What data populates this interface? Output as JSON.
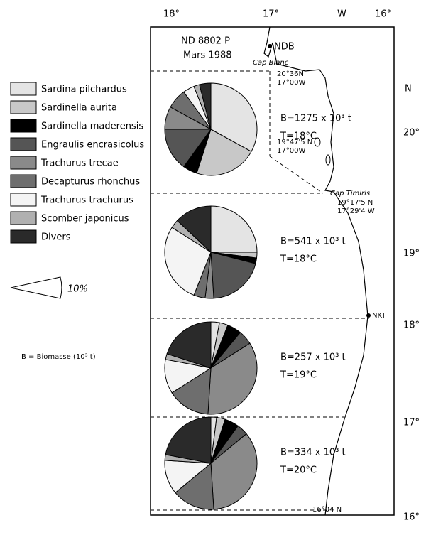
{
  "legend": {
    "categories": [
      "Sardina pilchardus",
      "Sardinella aurita",
      "Sardinella maderensis",
      "Engraulis encrasicolus",
      "Trachurus trecae",
      "Decapturus rhonchus",
      "Trachurus trachurus",
      "Scomber japonicus",
      "Divers"
    ],
    "colors": [
      "#e4e4e4",
      "#c8c8c8",
      "#000000",
      "#555555",
      "#8a8a8a",
      "#6e6e6e",
      "#f4f4f4",
      "#b0b0b0",
      "#2a2a2a"
    ]
  },
  "scale_label": "10%",
  "biomass_note": "B = Biomasse (10³ t)",
  "map": {
    "campaign": "ND 8802 P",
    "date": "Mars 1988",
    "lon_labels": [
      "18°",
      "17°",
      "W",
      "16°"
    ],
    "lat_labels": [
      "N",
      "20°",
      "19°",
      "18°",
      "17°",
      "16°"
    ],
    "places": [
      "NDB",
      "Cap Blanc",
      "20°36N",
      "17°00W",
      "19°47'5 N",
      "17°00W",
      "Cap Timiris",
      "19°17'5 N",
      "17°29'4 W",
      "NKT",
      "16°04 N"
    ]
  },
  "chart_data": [
    {
      "type": "pie",
      "values": [
        33,
        22,
        5,
        15,
        8,
        7,
        4,
        2,
        4
      ],
      "biomass": "B=1275 x 10³ t",
      "temperature": "T=18°C"
    },
    {
      "type": "pie",
      "values": [
        25,
        2,
        2,
        20,
        3,
        4,
        28,
        3,
        13
      ],
      "biomass": "B=541 x 10³ t",
      "temperature": "T=18°C"
    },
    {
      "type": "pie",
      "values": [
        3,
        3,
        5,
        5,
        35,
        15,
        12,
        2,
        20
      ],
      "biomass": "B=257 x 10³ t",
      "temperature": "T=19°C"
    },
    {
      "type": "pie",
      "values": [
        2,
        3,
        5,
        4,
        35,
        15,
        12,
        2,
        22
      ],
      "biomass": "B=334 x 10³ t",
      "temperature": "T=20°C"
    }
  ]
}
